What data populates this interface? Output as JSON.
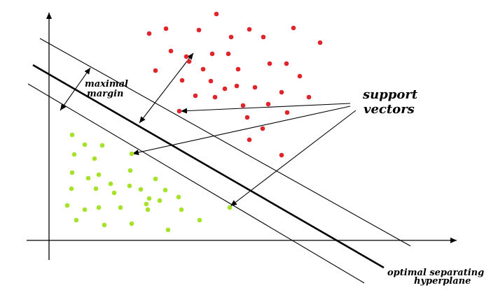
{
  "labels": {
    "margin_line1": "maximal",
    "margin_line2": "margin",
    "support_line1": "support",
    "support_line2": "vectors",
    "hyperplane_line1": "optimal separating",
    "hyperplane_line2": "hyperplane"
  },
  "colors": {
    "class_red": "#e0242a",
    "class_green": "#a6e22c",
    "ink": "#000000"
  },
  "classes": [
    {
      "name": "",
      "color_key": "class_red"
    },
    {
      "name": "",
      "color_key": "class_green"
    }
  ]
}
